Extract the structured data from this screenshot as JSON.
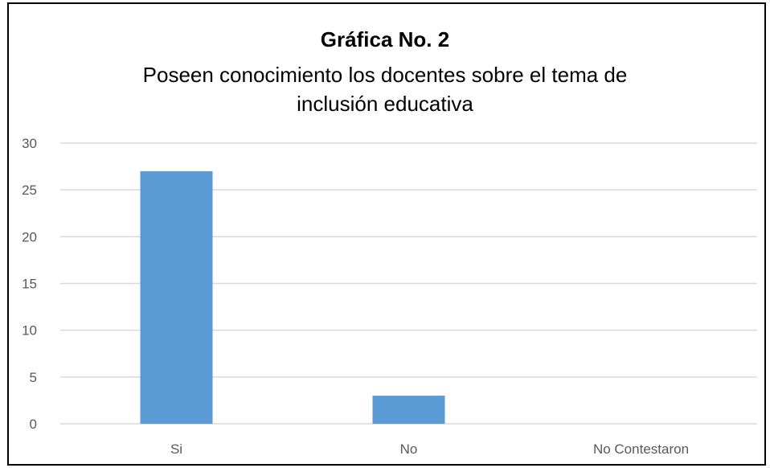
{
  "chart_data": {
    "type": "bar",
    "title": "Gráfica No. 2",
    "subtitle_lines": [
      "Poseen conocimiento los docentes sobre el tema de",
      "inclusión educativa"
    ],
    "categories": [
      "Si",
      "No",
      "No Contestaron"
    ],
    "values": [
      27,
      3,
      0
    ],
    "ylim": [
      0,
      30
    ],
    "yticks": [
      0,
      5,
      10,
      15,
      20,
      25,
      30
    ],
    "ytick_labels": [
      "0",
      "5",
      "10",
      "15",
      "20",
      "25",
      "30"
    ],
    "xlabel": "",
    "ylabel": "",
    "grid": true,
    "legend": "none",
    "bar_color": "#5B9BD5",
    "grid_color": "#D9D9D9"
  }
}
